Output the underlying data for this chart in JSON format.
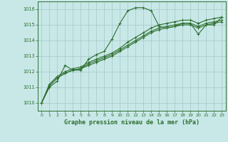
{
  "title": "Graphe pression niveau de la mer (hPa)",
  "bg_color": "#c8e8e8",
  "grid_color": "#aacccc",
  "line_color": "#2d6e2d",
  "xlim": [
    -0.5,
    23.5
  ],
  "ylim": [
    1009.5,
    1016.5
  ],
  "xticks": [
    0,
    1,
    2,
    3,
    4,
    5,
    6,
    7,
    8,
    9,
    10,
    11,
    12,
    13,
    14,
    15,
    16,
    17,
    18,
    19,
    20,
    21,
    22,
    23
  ],
  "yticks": [
    1010,
    1011,
    1012,
    1013,
    1014,
    1015,
    1016
  ],
  "series": [
    [
      1010.0,
      1011.0,
      1011.4,
      1012.4,
      1012.1,
      1012.1,
      1012.8,
      1013.1,
      1013.3,
      1014.1,
      1015.1,
      1015.9,
      1016.1,
      1016.1,
      1015.9,
      1014.9,
      1014.8,
      1014.9,
      1015.1,
      1015.1,
      1014.4,
      1015.0,
      1015.0,
      1015.5
    ],
    [
      1010.0,
      1011.1,
      1011.6,
      1011.9,
      1012.1,
      1012.2,
      1012.4,
      1012.6,
      1012.8,
      1013.0,
      1013.3,
      1013.6,
      1013.9,
      1014.2,
      1014.5,
      1014.7,
      1014.8,
      1014.9,
      1015.0,
      1015.0,
      1014.8,
      1015.0,
      1015.1,
      1015.2
    ],
    [
      1010.0,
      1011.1,
      1011.6,
      1011.9,
      1012.1,
      1012.2,
      1012.5,
      1012.7,
      1012.9,
      1013.1,
      1013.4,
      1013.7,
      1014.0,
      1014.3,
      1014.6,
      1014.8,
      1014.9,
      1015.0,
      1015.1,
      1015.1,
      1014.9,
      1015.1,
      1015.2,
      1015.3
    ],
    [
      1010.0,
      1011.2,
      1011.7,
      1012.0,
      1012.2,
      1012.3,
      1012.6,
      1012.8,
      1013.0,
      1013.2,
      1013.5,
      1013.9,
      1014.2,
      1014.5,
      1014.8,
      1015.0,
      1015.1,
      1015.2,
      1015.3,
      1015.3,
      1015.1,
      1015.3,
      1015.4,
      1015.5
    ]
  ]
}
